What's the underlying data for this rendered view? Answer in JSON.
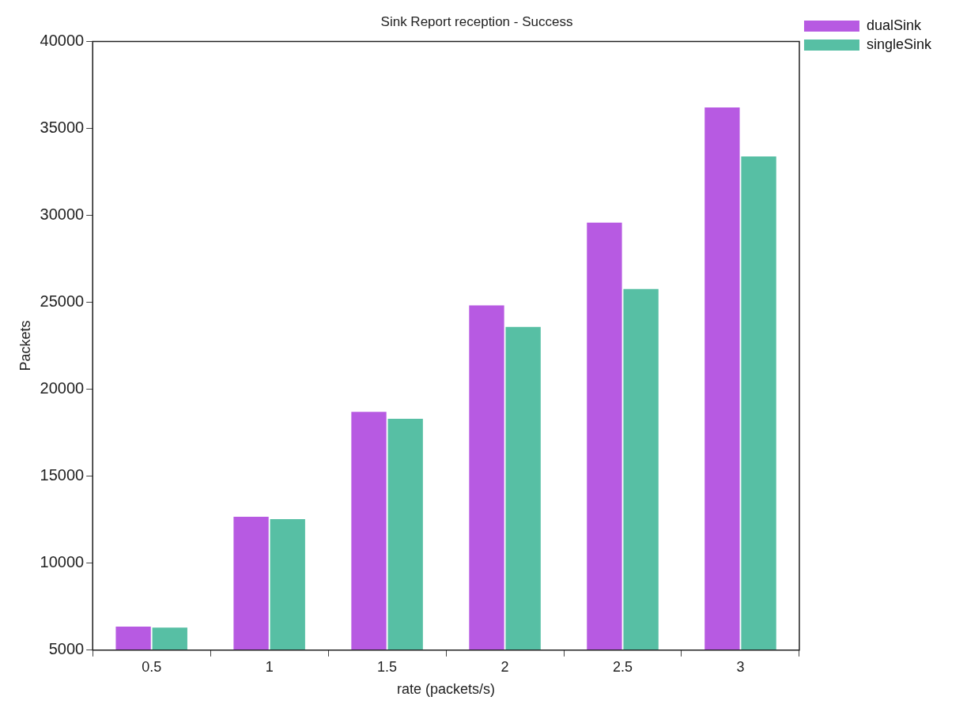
{
  "chart_data": {
    "type": "bar",
    "title": "Sink Report reception - Success",
    "xlabel": "rate (packets/s)",
    "ylabel": "Packets",
    "categories": [
      "0.5",
      "1",
      "1.5",
      "2",
      "2.5",
      "3"
    ],
    "series": [
      {
        "name": "dualSink",
        "color": "#b75ae2",
        "values": [
          6350,
          12670,
          18700,
          24820,
          29580,
          36200
        ]
      },
      {
        "name": "singleSink",
        "color": "#57bfa4",
        "values": [
          6300,
          12530,
          18300,
          23580,
          25760,
          33380
        ]
      }
    ],
    "ylim": [
      5000,
      40000
    ],
    "yticks": [
      5000,
      10000,
      15000,
      20000,
      25000,
      30000,
      35000,
      40000
    ],
    "grid": false,
    "legend": "right"
  }
}
